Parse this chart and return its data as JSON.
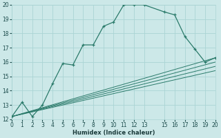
{
  "xlabel": "Humidex (Indice chaleur)",
  "ylabel": "",
  "bg_color": "#cce8e8",
  "grid_color": "#aad4d4",
  "line_color": "#2a7a6a",
  "xlim": [
    0,
    20
  ],
  "ylim": [
    12,
    20
  ],
  "xticks": [
    0,
    1,
    2,
    3,
    4,
    5,
    6,
    7,
    8,
    9,
    10,
    11,
    12,
    13,
    15,
    16,
    17,
    18,
    19,
    20
  ],
  "yticks": [
    12,
    13,
    14,
    15,
    16,
    17,
    18,
    19,
    20
  ],
  "main_x": [
    0,
    1,
    2,
    3,
    4,
    5,
    6,
    7,
    8,
    9,
    10,
    11,
    12,
    13,
    15,
    16,
    17,
    18,
    19,
    20
  ],
  "main_y": [
    12.2,
    13.2,
    12.2,
    13.0,
    14.5,
    15.9,
    15.8,
    17.2,
    17.2,
    18.5,
    18.8,
    20.0,
    20.0,
    20.0,
    19.5,
    19.3,
    17.8,
    16.9,
    16.0,
    16.3
  ],
  "linear_lines": [
    {
      "x": [
        0,
        20
      ],
      "y": [
        12.2,
        16.3
      ]
    },
    {
      "x": [
        0,
        20
      ],
      "y": [
        12.2,
        16.0
      ]
    },
    {
      "x": [
        0,
        20
      ],
      "y": [
        12.2,
        15.7
      ]
    },
    {
      "x": [
        0,
        20
      ],
      "y": [
        12.2,
        15.4
      ]
    }
  ],
  "xlabel_fontsize": 6.0,
  "tick_fontsize": 5.5
}
